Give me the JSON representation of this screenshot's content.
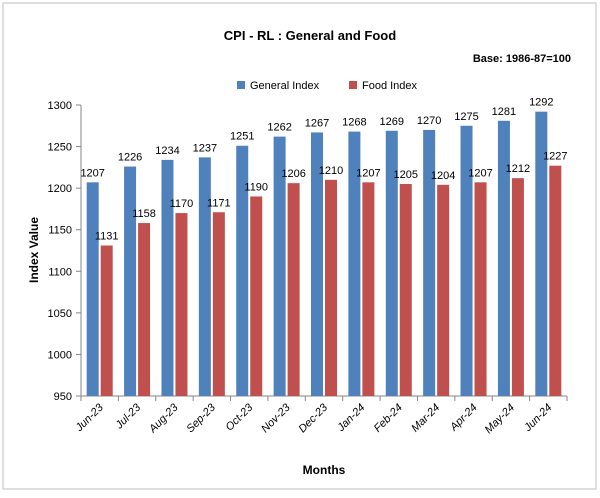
{
  "chart_data": {
    "type": "bar",
    "title": "CPI - RL : General and Food",
    "subtitle": "Base: 1986-87=100",
    "xlabel": "Months",
    "ylabel": "Index Value",
    "ylim": [
      950,
      1300
    ],
    "yticks": [
      950,
      1000,
      1050,
      1100,
      1150,
      1200,
      1250,
      1300
    ],
    "grid": false,
    "legend_position": "top-center",
    "categories": [
      "Jun-23",
      "Jul-23",
      "Aug-23",
      "Sep-23",
      "Oct-23",
      "Nov-23",
      "Dec-23",
      "Jan-24",
      "Feb-24",
      "Mar-24",
      "Apr-24",
      "May-24",
      "Jun-24"
    ],
    "series": [
      {
        "name": "General Index",
        "color": "#4F81BD",
        "values": [
          1207,
          1226,
          1234,
          1237,
          1251,
          1262,
          1267,
          1268,
          1269,
          1270,
          1275,
          1281,
          1292
        ]
      },
      {
        "name": "Food Index",
        "color": "#C0504D",
        "values": [
          1131,
          1158,
          1170,
          1171,
          1190,
          1206,
          1210,
          1207,
          1205,
          1204,
          1207,
          1212,
          1227
        ]
      }
    ]
  }
}
